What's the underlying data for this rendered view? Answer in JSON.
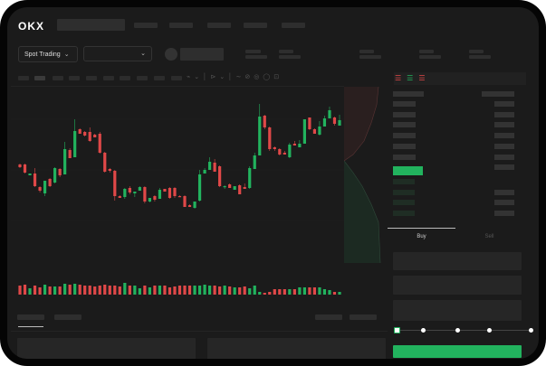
{
  "header": {
    "logo": "OKX"
  },
  "toolbar": {
    "market_selector": "Spot Trading",
    "pair_selector": ""
  },
  "trade_panel": {
    "tabs": [
      {
        "label": "Buy",
        "active": true
      },
      {
        "label": "Sell",
        "active": false
      }
    ],
    "slider_level": 0,
    "submit_color": "#22b35e"
  },
  "colors": {
    "up": "#22b35e",
    "down": "#e04848",
    "background": "#1b1b1b"
  },
  "chart_data": {
    "type": "candlestick",
    "candles": [
      {
        "o": 58,
        "h": 59,
        "l": 54,
        "c": 55
      },
      {
        "o": 58,
        "h": 59,
        "l": 48,
        "c": 49
      },
      {
        "o": 46,
        "h": 48,
        "l": 46,
        "c": 48
      },
      {
        "o": 48,
        "h": 54,
        "l": 33,
        "c": 34
      },
      {
        "o": 33,
        "h": 34,
        "l": 27,
        "c": 29
      },
      {
        "o": 26,
        "h": 40,
        "l": 23,
        "c": 40
      },
      {
        "o": 42,
        "h": 43,
        "l": 33,
        "c": 34
      },
      {
        "o": 38,
        "h": 55,
        "l": 37,
        "c": 54
      },
      {
        "o": 53,
        "h": 54,
        "l": 44,
        "c": 46
      },
      {
        "o": 47,
        "h": 83,
        "l": 47,
        "c": 75
      },
      {
        "o": 74,
        "h": 76,
        "l": 65,
        "c": 65
      },
      {
        "o": 66,
        "h": 108,
        "l": 66,
        "c": 95
      },
      {
        "o": 97,
        "h": 98,
        "l": 92,
        "c": 92
      },
      {
        "o": 94,
        "h": 95,
        "l": 89,
        "c": 90
      },
      {
        "o": 94,
        "h": 99,
        "l": 83,
        "c": 84
      },
      {
        "o": 91,
        "h": 92,
        "l": 88,
        "c": 88
      },
      {
        "o": 92,
        "h": 94,
        "l": 70,
        "c": 71
      },
      {
        "o": 71,
        "h": 72,
        "l": 49,
        "c": 50
      },
      {
        "o": 53,
        "h": 54,
        "l": 49,
        "c": 51
      },
      {
        "o": 51,
        "h": 52,
        "l": 18,
        "c": 23
      },
      {
        "o": 23,
        "h": 24,
        "l": 21,
        "c": 21
      },
      {
        "o": 22,
        "h": 32,
        "l": 20,
        "c": 31
      },
      {
        "o": 32,
        "h": 34,
        "l": 25,
        "c": 27
      },
      {
        "o": 26,
        "h": 28,
        "l": 22,
        "c": 28
      },
      {
        "o": 29,
        "h": 34,
        "l": 29,
        "c": 33
      },
      {
        "o": 33,
        "h": 34,
        "l": 15,
        "c": 17
      },
      {
        "o": 17,
        "h": 21,
        "l": 16,
        "c": 21
      },
      {
        "o": 23,
        "h": 24,
        "l": 17,
        "c": 19
      },
      {
        "o": 20,
        "h": 32,
        "l": 20,
        "c": 30
      },
      {
        "o": 31,
        "h": 31,
        "l": 28,
        "c": 28
      },
      {
        "o": 32,
        "h": 33,
        "l": 20,
        "c": 21
      },
      {
        "o": 32,
        "h": 33,
        "l": 21,
        "c": 23
      },
      {
        "o": 23,
        "h": 24,
        "l": 22,
        "c": 22
      },
      {
        "o": 23,
        "h": 24,
        "l": 11,
        "c": 11
      },
      {
        "o": 13,
        "h": 14,
        "l": 11,
        "c": 11
      },
      {
        "o": 10,
        "h": 17,
        "l": 9,
        "c": 17
      },
      {
        "o": 18,
        "h": 52,
        "l": 17,
        "c": 47
      },
      {
        "o": 48,
        "h": 54,
        "l": 48,
        "c": 52
      },
      {
        "o": 52,
        "h": 66,
        "l": 52,
        "c": 61
      },
      {
        "o": 60,
        "h": 64,
        "l": 50,
        "c": 50
      },
      {
        "o": 56,
        "h": 57,
        "l": 33,
        "c": 34
      },
      {
        "o": 33,
        "h": 35,
        "l": 31,
        "c": 34
      },
      {
        "o": 36,
        "h": 37,
        "l": 32,
        "c": 32
      },
      {
        "o": 30,
        "h": 34,
        "l": 30,
        "c": 34
      },
      {
        "o": 35,
        "h": 36,
        "l": 25,
        "c": 25
      },
      {
        "o": 33,
        "h": 37,
        "l": 31,
        "c": 31
      },
      {
        "o": 32,
        "h": 56,
        "l": 31,
        "c": 54
      },
      {
        "o": 53,
        "h": 71,
        "l": 53,
        "c": 68
      },
      {
        "o": 68,
        "h": 125,
        "l": 68,
        "c": 111
      },
      {
        "o": 112,
        "h": 113,
        "l": 97,
        "c": 99
      },
      {
        "o": 99,
        "h": 100,
        "l": 73,
        "c": 75
      },
      {
        "o": 77,
        "h": 78,
        "l": 73,
        "c": 75
      },
      {
        "o": 75,
        "h": 76,
        "l": 68,
        "c": 69
      },
      {
        "o": 71,
        "h": 73,
        "l": 69,
        "c": 69
      },
      {
        "o": 66,
        "h": 82,
        "l": 65,
        "c": 80
      },
      {
        "o": 81,
        "h": 84,
        "l": 79,
        "c": 79
      },
      {
        "o": 77,
        "h": 85,
        "l": 77,
        "c": 81
      },
      {
        "o": 81,
        "h": 108,
        "l": 81,
        "c": 108
      },
      {
        "o": 110,
        "h": 110,
        "l": 96,
        "c": 97
      },
      {
        "o": 97,
        "h": 98,
        "l": 92,
        "c": 92
      },
      {
        "o": 91,
        "h": 106,
        "l": 90,
        "c": 100
      },
      {
        "o": 100,
        "h": 112,
        "l": 100,
        "c": 109
      },
      {
        "o": 109,
        "h": 122,
        "l": 109,
        "c": 118
      },
      {
        "o": 110,
        "h": 111,
        "l": 101,
        "c": 103
      },
      {
        "o": 101,
        "h": 113,
        "l": 101,
        "c": 107
      }
    ],
    "volume": [
      10,
      11,
      7,
      10,
      8,
      11,
      9,
      9,
      9,
      12,
      11,
      12,
      11,
      10,
      10,
      9,
      10,
      11,
      10,
      10,
      9,
      13,
      10,
      10,
      7,
      10,
      8,
      10,
      10,
      10,
      8,
      9,
      10,
      10,
      10,
      10,
      10,
      11,
      10,
      10,
      9,
      10,
      9,
      8,
      8,
      9,
      7,
      10,
      3,
      2,
      3,
      6,
      6,
      6,
      6,
      6,
      8,
      8,
      8,
      8,
      8,
      6,
      5,
      3,
      3
    ],
    "ylim": [
      0,
      140
    ]
  }
}
